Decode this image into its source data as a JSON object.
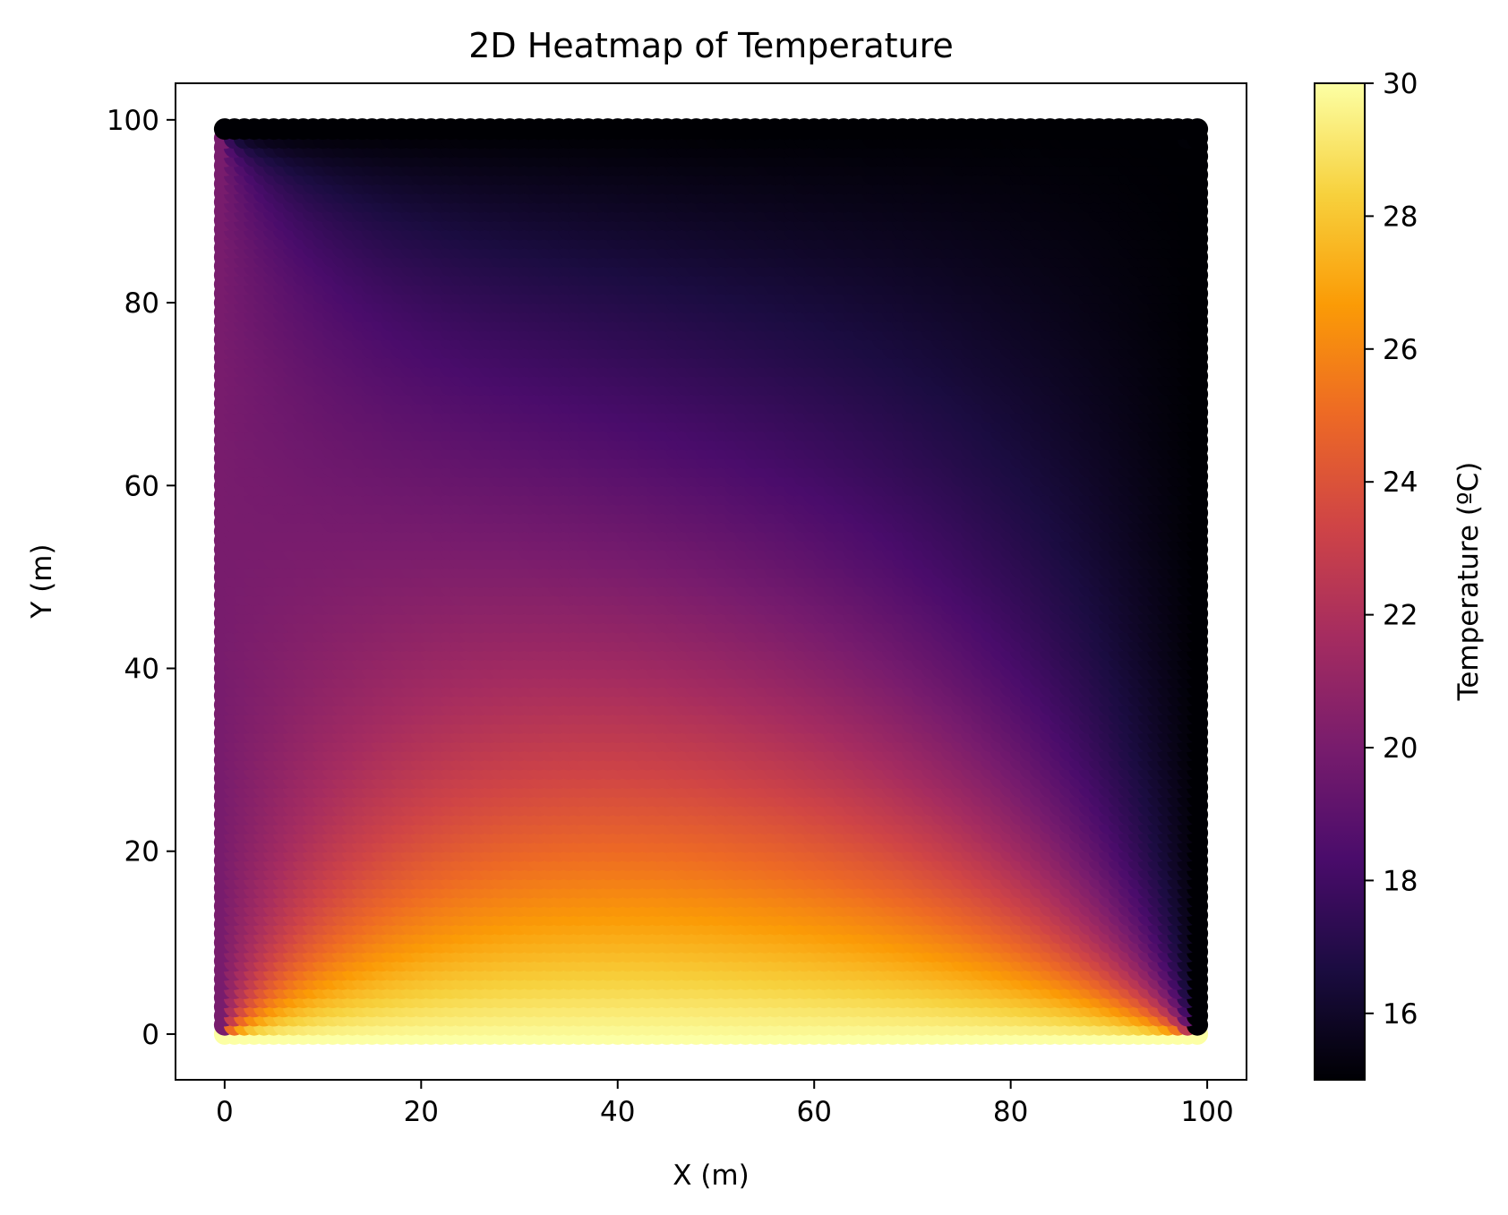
{
  "chart_data": {
    "type": "heatmap",
    "title": "2D Heatmap of Temperature",
    "xlabel": "X (m)",
    "ylabel": "Y (m)",
    "xlim": [
      -5,
      104
    ],
    "ylim": [
      -5,
      104
    ],
    "x_ticks": [
      0,
      20,
      40,
      60,
      80,
      100
    ],
    "y_ticks": [
      0,
      20,
      40,
      60,
      80,
      100
    ],
    "grid": false,
    "colormap": "inferno",
    "colormap_stops": [
      "#000004",
      "#1b0c41",
      "#4a0c6b",
      "#781c6d",
      "#a52c60",
      "#cf4446",
      "#ed6925",
      "#fb9b06",
      "#f7d13d",
      "#fcffa4"
    ],
    "grid_x_range": [
      0,
      99
    ],
    "grid_y_range": [
      0,
      99
    ],
    "boundary_conditions": {
      "bottom_y0": 30,
      "top_y99": 15,
      "left_x0": 20,
      "right_x99": 15
    },
    "colorbar": {
      "label": "Temperature (ºC)",
      "min": 15,
      "max": 30,
      "ticks": [
        16,
        18,
        20,
        22,
        24,
        26,
        28,
        30
      ]
    }
  }
}
